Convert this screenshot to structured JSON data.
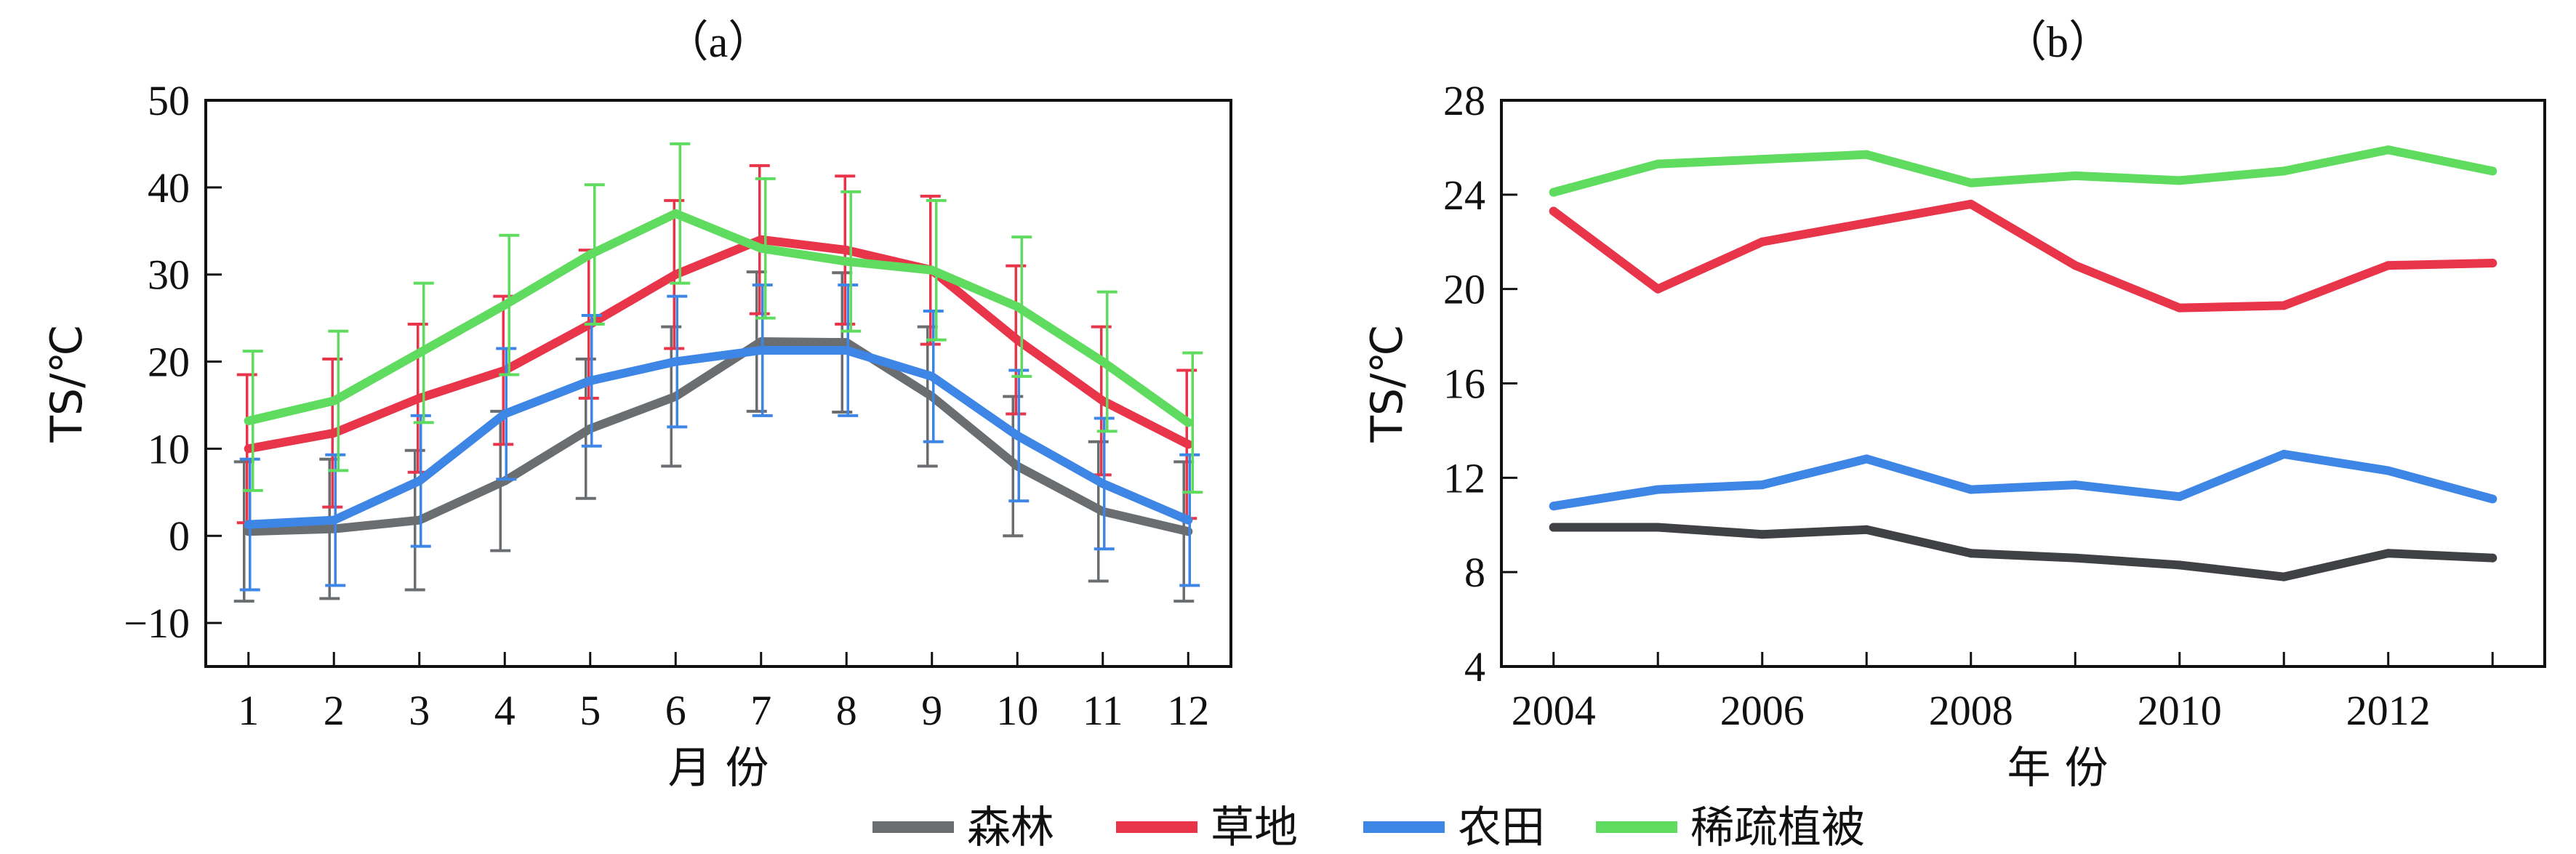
{
  "legend": {
    "items": [
      {
        "label": "森林",
        "color": "#6b6e70"
      },
      {
        "label": "草地",
        "color": "#e8354a"
      },
      {
        "label": "农田",
        "color": "#3e86e6"
      },
      {
        "label": "稀疏植被",
        "color": "#5fdc5f"
      }
    ]
  },
  "chart_data": [
    {
      "panel_label": "（a）",
      "type": "line",
      "xlabel": "月 份",
      "ylabel": "TS/℃",
      "x": [
        1,
        2,
        3,
        4,
        5,
        6,
        7,
        8,
        9,
        10,
        11,
        12
      ],
      "xlim": [
        0.5,
        12.5
      ],
      "ylim": [
        -15,
        50
      ],
      "yticks": [
        -10,
        0,
        10,
        20,
        30,
        40,
        50
      ],
      "ytick_labels": [
        "−10",
        "0",
        "10",
        "20",
        "30",
        "40",
        "50"
      ],
      "error_bars": true,
      "series": [
        {
          "name": "森林",
          "color": "#6b6e70",
          "values": [
            0.5,
            0.8,
            1.8,
            6.3,
            12.3,
            16.0,
            22.3,
            22.2,
            16.0,
            8.0,
            2.8,
            0.5
          ],
          "error": [
            8,
            8,
            8,
            8,
            8,
            8,
            8,
            8,
            8,
            8,
            8,
            8
          ]
        },
        {
          "name": "草地",
          "color": "#e8354a",
          "values": [
            10.0,
            11.8,
            15.8,
            19.0,
            24.3,
            30.0,
            34.0,
            32.8,
            30.5,
            22.5,
            15.5,
            10.5
          ],
          "error": [
            8.5,
            8.5,
            8.5,
            8.5,
            8.5,
            8.5,
            8.5,
            8.5,
            8.5,
            8.5,
            8.5,
            8.5
          ]
        },
        {
          "name": "农田",
          "color": "#3e86e6",
          "values": [
            1.3,
            1.8,
            6.3,
            14.0,
            17.8,
            20.0,
            21.3,
            21.3,
            18.3,
            11.5,
            6.0,
            1.8
          ],
          "error": [
            7.5,
            7.5,
            7.5,
            7.5,
            7.5,
            7.5,
            7.5,
            7.5,
            7.5,
            7.5,
            7.5,
            7.5
          ]
        },
        {
          "name": "稀疏植被",
          "color": "#5fdc5f",
          "values": [
            13.2,
            15.5,
            21.0,
            26.5,
            32.3,
            37.0,
            33.0,
            31.5,
            30.5,
            26.3,
            20.0,
            13.0
          ],
          "error": [
            8,
            8,
            8,
            8,
            8,
            8,
            8,
            8,
            8,
            8,
            8,
            8
          ]
        }
      ]
    },
    {
      "panel_label": "（b）",
      "type": "line",
      "xlabel": "年 份",
      "ylabel": "TS/℃",
      "x": [
        2004,
        2005,
        2006,
        2007,
        2008,
        2009,
        2010,
        2011,
        2012,
        2013
      ],
      "xlim": [
        2003.5,
        2013.5
      ],
      "xticks": [
        2004,
        2006,
        2008,
        2010,
        2012
      ],
      "ylim": [
        4,
        28
      ],
      "yticks": [
        4,
        8,
        12,
        16,
        20,
        24,
        28
      ],
      "series": [
        {
          "name": "森林",
          "color": "#3f4144",
          "values": [
            9.9,
            9.9,
            9.6,
            9.8,
            8.8,
            8.6,
            8.3,
            7.8,
            8.8,
            8.6
          ]
        },
        {
          "name": "草地",
          "color": "#e8354a",
          "values": [
            23.3,
            20.0,
            22.0,
            22.8,
            23.6,
            21.0,
            19.2,
            19.3,
            21.0,
            21.1
          ]
        },
        {
          "name": "农田",
          "color": "#3e86e6",
          "values": [
            10.8,
            11.5,
            11.7,
            12.8,
            11.5,
            11.7,
            11.2,
            13.0,
            12.3,
            11.1
          ]
        },
        {
          "name": "稀疏植被",
          "color": "#5fdc5f",
          "values": [
            24.1,
            25.3,
            25.5,
            25.7,
            24.5,
            24.8,
            24.6,
            25.0,
            25.9,
            25.0
          ]
        }
      ]
    }
  ]
}
